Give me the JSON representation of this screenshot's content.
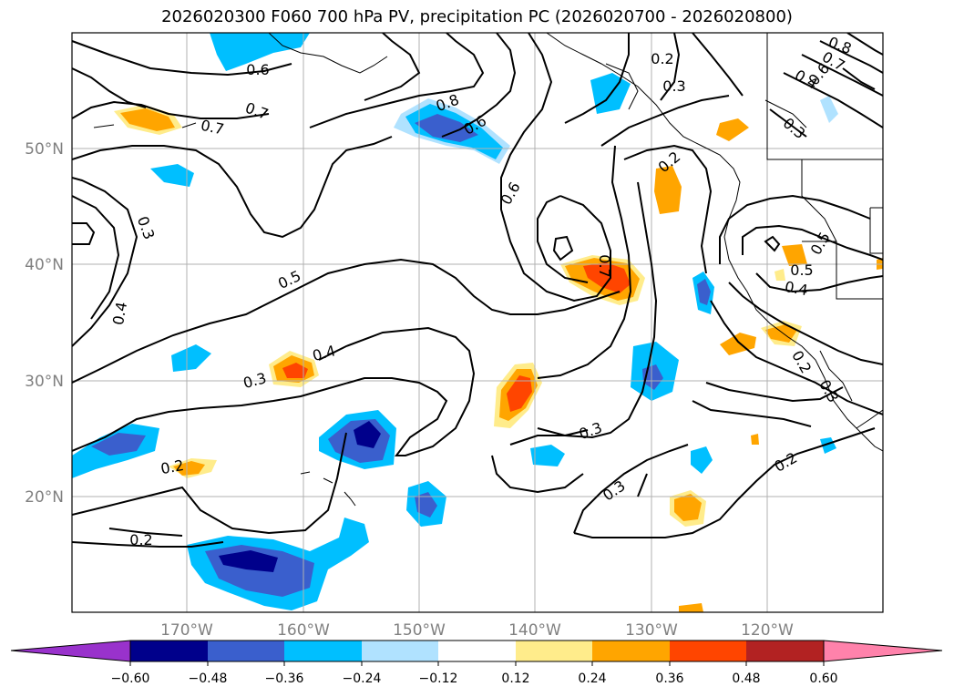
{
  "title": "2026020300 F060 700 hPa PV, precipitation PC (2026020700 - 2026020800)",
  "axes": {
    "lat_labels": [
      "50°N",
      "40°N",
      "30°N",
      "20°N"
    ],
    "lon_labels": [
      "170°W",
      "160°W",
      "150°W",
      "140°W",
      "130°W",
      "120°W"
    ]
  },
  "contour_labels": [
    "0.6",
    "0.7",
    "0.7",
    "0.8",
    "0.6",
    "0.2",
    "0.3",
    "0.8",
    "0.7",
    "0.6",
    "0.4",
    "0.3",
    "0.3",
    "0.2",
    "0.6",
    "0.7",
    "0.5",
    "0.5",
    "0.4",
    "0.5",
    "0.4",
    "0.4",
    "0.3",
    "0.2",
    "0.2",
    "0.3",
    "0.2",
    "0.2",
    "0.3",
    "0.3"
  ],
  "colorbar": {
    "ticks": [
      "−0.60",
      "−0.48",
      "−0.36",
      "−0.24",
      "−0.12",
      "0.12",
      "0.24",
      "0.36",
      "0.48",
      "0.60"
    ],
    "colors": [
      "#9932cc",
      "#00008b",
      "#3a5fcd",
      "#00bfff",
      "#b0e2ff",
      "#ffffff",
      "#ffec8b",
      "#ffa500",
      "#ff4500",
      "#b22222",
      "#ff82ab"
    ]
  }
}
